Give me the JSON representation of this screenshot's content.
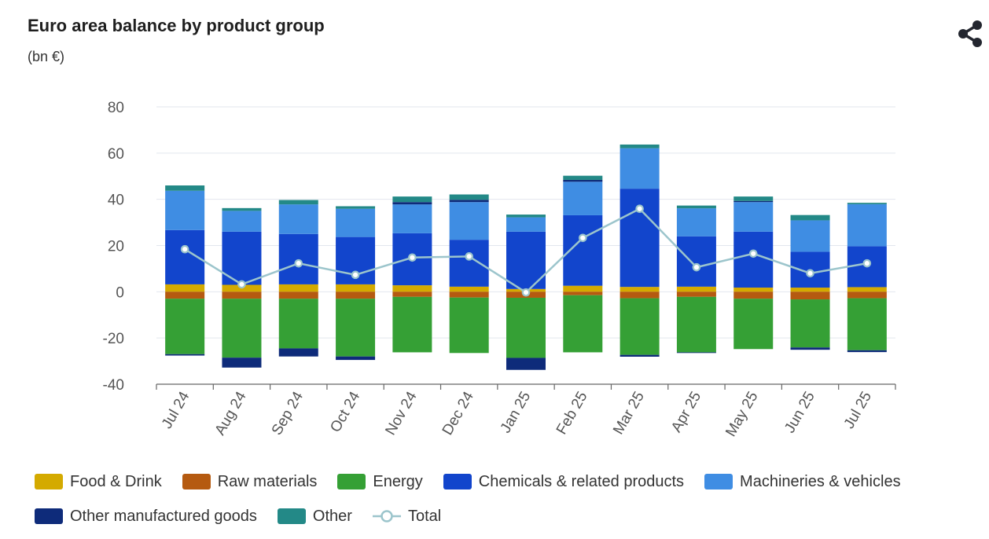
{
  "header": {
    "title": "Euro area balance by product group",
    "subtitle": "(bn €)",
    "share_icon": "share-icon"
  },
  "colors": {
    "food": "#d4aa00",
    "raw": "#b55a10",
    "energy": "#35a035",
    "chemicals": "#1245cc",
    "machinery": "#3f8de3",
    "other_manufactured": "#0e2b7a",
    "other": "#238987",
    "total": "#9cc5cc",
    "grid": "#e2e6ee",
    "axis_text": "#555555"
  },
  "chart_data": {
    "type": "bar",
    "stacked": true,
    "title": "Euro area balance by product group",
    "subtitle": "(bn €)",
    "categories": [
      "Jul 24",
      "Aug 24",
      "Sep 24",
      "Oct 24",
      "Nov 24",
      "Dec 24",
      "Jan 25",
      "Feb 25",
      "Mar 25",
      "Apr 25",
      "May 25",
      "Jun 25",
      "Jul 25"
    ],
    "ylim": [
      -40,
      80
    ],
    "yticks": [
      80,
      60,
      40,
      20,
      0,
      -20,
      -40
    ],
    "grid": true,
    "legend_position": "bottom",
    "series": [
      {
        "name": "Food & Drink",
        "key": "food",
        "values": [
          3.2,
          3.0,
          3.2,
          3.2,
          2.8,
          2.2,
          1.2,
          2.6,
          2.1,
          2.2,
          1.8,
          1.8,
          2.0
        ]
      },
      {
        "name": "Raw materials",
        "key": "raw",
        "values": [
          -3.0,
          -3.0,
          -3.0,
          -3.0,
          -2.2,
          -2.5,
          -2.6,
          -1.5,
          -2.8,
          -2.2,
          -3.0,
          -3.3,
          -2.8
        ]
      },
      {
        "name": "Energy",
        "key": "energy",
        "values": [
          -24.0,
          -25.5,
          -21.5,
          -25.0,
          -24.0,
          -24.0,
          -26.0,
          -24.7,
          -24.5,
          -24.0,
          -21.8,
          -20.8,
          -22.5
        ]
      },
      {
        "name": "Chemicals & related products",
        "key": "chemicals",
        "values": [
          23.5,
          23.0,
          21.8,
          20.5,
          22.5,
          20.3,
          24.8,
          30.5,
          42.5,
          21.8,
          24.2,
          15.5,
          17.7
        ]
      },
      {
        "name": "Machineries & vehicles",
        "key": "machinery",
        "values": [
          17.0,
          9.0,
          12.8,
          12.2,
          12.5,
          16.3,
          6.2,
          14.5,
          17.5,
          12.1,
          12.8,
          13.6,
          18.2
        ]
      },
      {
        "name": "Other manufactured goods",
        "key": "other_manufactured",
        "values": [
          -0.6,
          -4.3,
          -3.5,
          -1.5,
          1.0,
          1.0,
          -5.2,
          0.8,
          -0.8,
          -0.3,
          0.5,
          -1.0,
          -0.8
        ]
      },
      {
        "name": "Other",
        "key": "other",
        "values": [
          2.3,
          1.2,
          1.9,
          1.1,
          2.4,
          2.3,
          1.2,
          1.8,
          1.6,
          1.2,
          1.9,
          2.3,
          0.6
        ]
      },
      {
        "name": "Total",
        "key": "total",
        "type": "line",
        "values": [
          18.4,
          3.2,
          12.3,
          7.3,
          14.8,
          15.3,
          -0.3,
          23.3,
          35.9,
          10.6,
          16.5,
          8.0,
          12.3
        ]
      }
    ]
  }
}
